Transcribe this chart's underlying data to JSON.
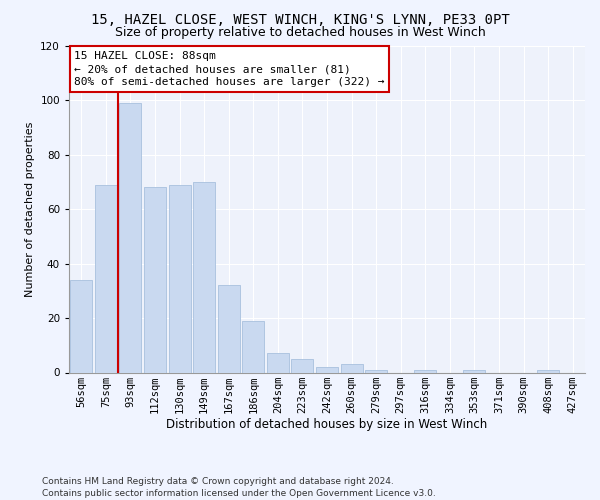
{
  "title1": "15, HAZEL CLOSE, WEST WINCH, KING'S LYNN, PE33 0PT",
  "title2": "Size of property relative to detached houses in West Winch",
  "xlabel": "Distribution of detached houses by size in West Winch",
  "ylabel": "Number of detached properties",
  "categories": [
    "56sqm",
    "75sqm",
    "93sqm",
    "112sqm",
    "130sqm",
    "149sqm",
    "167sqm",
    "186sqm",
    "204sqm",
    "223sqm",
    "242sqm",
    "260sqm",
    "279sqm",
    "297sqm",
    "316sqm",
    "334sqm",
    "353sqm",
    "371sqm",
    "390sqm",
    "408sqm",
    "427sqm"
  ],
  "values": [
    34,
    69,
    99,
    68,
    69,
    70,
    32,
    19,
    7,
    5,
    2,
    3,
    1,
    0,
    1,
    0,
    1,
    0,
    0,
    1,
    0
  ],
  "bar_color": "#c9d9f0",
  "bar_edge_color": "#a8c0de",
  "vline_color": "#cc0000",
  "annotation_text": "15 HAZEL CLOSE: 88sqm\n← 20% of detached houses are smaller (81)\n80% of semi-detached houses are larger (322) →",
  "annotation_box_color": "#ffffff",
  "annotation_box_edge": "#cc0000",
  "ylim": [
    0,
    120
  ],
  "yticks": [
    0,
    20,
    40,
    60,
    80,
    100,
    120
  ],
  "footnote": "Contains HM Land Registry data © Crown copyright and database right 2024.\nContains public sector information licensed under the Open Government Licence v3.0.",
  "bg_color": "#eef2fb",
  "grid_color": "#ffffff",
  "title1_fontsize": 10,
  "title2_fontsize": 9,
  "xlabel_fontsize": 8.5,
  "ylabel_fontsize": 8,
  "tick_fontsize": 7.5,
  "annot_fontsize": 8,
  "footnote_fontsize": 6.5
}
